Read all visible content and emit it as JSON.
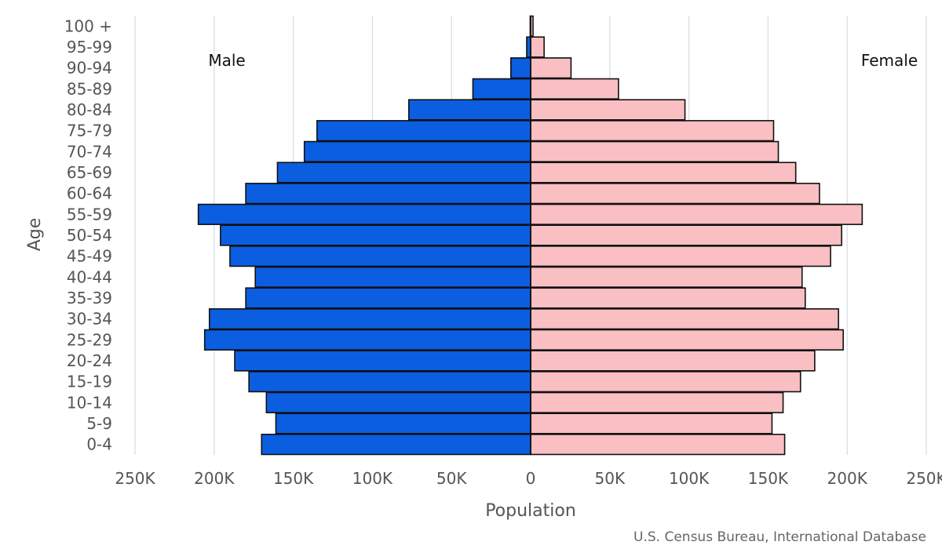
{
  "chart_data": {
    "type": "bar",
    "orientation": "horizontal",
    "subtype": "population-pyramid",
    "title": "",
    "xlabel": "Population",
    "ylabel": "Age",
    "xlim": [
      -250000,
      250000
    ],
    "x_ticks": [
      -250000,
      -200000,
      -150000,
      -100000,
      -50000,
      0,
      50000,
      100000,
      150000,
      200000,
      250000
    ],
    "x_tick_labels": [
      "250K",
      "200K",
      "150K",
      "100K",
      "50K",
      "0",
      "50K",
      "100K",
      "150K",
      "200K",
      "250K"
    ],
    "categories": [
      "100 +",
      "95-99",
      "90-94",
      "85-89",
      "80-84",
      "75-79",
      "70-74",
      "65-69",
      "60-64",
      "55-59",
      "50-54",
      "45-49",
      "40-44",
      "35-39",
      "30-34",
      "25-29",
      "20-24",
      "15-19",
      "10-14",
      "5-9",
      "0-4"
    ],
    "series": [
      {
        "name": "Male",
        "color": "#0b5ee0",
        "values": [
          300,
          2500,
          12500,
          36500,
          77000,
          135000,
          143000,
          160000,
          180000,
          210000,
          196000,
          190000,
          174000,
          180000,
          203000,
          206000,
          187000,
          178000,
          167000,
          161000,
          170000
        ]
      },
      {
        "name": "Female",
        "color": "#f9bfc2",
        "values": [
          1500,
          8500,
          25500,
          55500,
          97500,
          153500,
          156500,
          167500,
          182500,
          209500,
          196500,
          189500,
          171500,
          173500,
          194500,
          197500,
          179500,
          170500,
          159500,
          152500,
          160500
        ]
      }
    ],
    "legend": {
      "male_label": "Male",
      "female_label": "Female"
    },
    "grid": true,
    "source": "U.S. Census Bureau, International Database"
  }
}
